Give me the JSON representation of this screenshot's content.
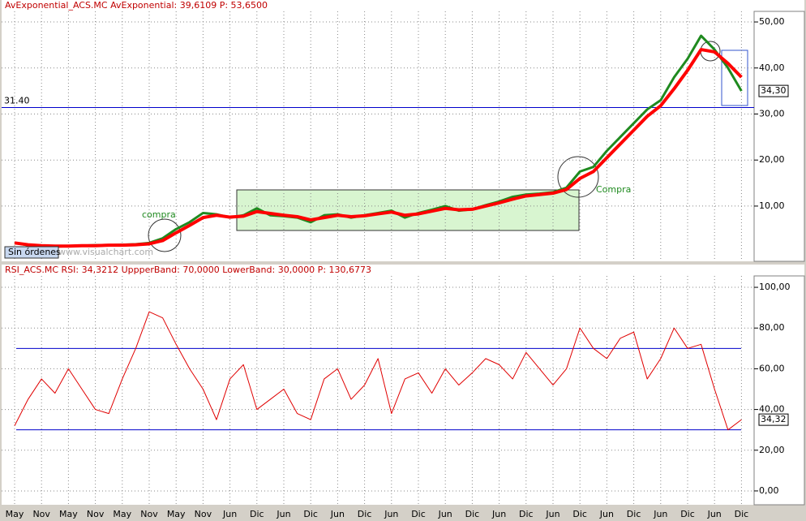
{
  "chart_data": [
    {
      "type": "line",
      "title": "AvExponential_ACS.MC  AvExponential: 39,6109  P: 53,6500",
      "series": [
        {
          "color": "#1f8a1f",
          "values": [
            2.0,
            1.5,
            1.3,
            1.2,
            1.3,
            1.4,
            1.5,
            1.5,
            1.6,
            1.7,
            2.0,
            3.0,
            5.0,
            6.5,
            8.5,
            8.2,
            7.5,
            8.0,
            9.5,
            8.0,
            7.8,
            7.5,
            6.5,
            8.0,
            8.2,
            7.5,
            8.0,
            8.5,
            9.0,
            7.5,
            8.5,
            9.2,
            10.0,
            9.0,
            9.3,
            10.2,
            11.0,
            12.0,
            12.5,
            12.7,
            13.0,
            14.0,
            17.5,
            18.5,
            22.0,
            25.0,
            28.0,
            31.0,
            33.0,
            38.0,
            42.0,
            47.0,
            44.0,
            40.0,
            35.0
          ]
        },
        {
          "color": "#ff0000",
          "values": [
            2.0,
            1.6,
            1.4,
            1.3,
            1.3,
            1.4,
            1.4,
            1.5,
            1.5,
            1.6,
            1.8,
            2.5,
            4.2,
            5.8,
            7.5,
            8.0,
            7.6,
            7.8,
            8.8,
            8.4,
            8.0,
            7.7,
            7.0,
            7.5,
            8.0,
            7.7,
            7.9,
            8.3,
            8.7,
            8.0,
            8.3,
            8.9,
            9.5,
            9.2,
            9.3,
            10.0,
            10.7,
            11.5,
            12.2,
            12.5,
            12.8,
            13.6,
            16.0,
            17.5,
            20.5,
            23.5,
            26.5,
            29.5,
            31.8,
            35.5,
            39.5,
            44.0,
            43.5,
            41.0,
            38.0
          ]
        }
      ],
      "ylim": [
        -2,
        52.3
      ],
      "yticks": [
        {
          "value": 10,
          "label": "10,00"
        },
        {
          "value": 20,
          "label": "20,00"
        },
        {
          "value": 30,
          "label": "30,00"
        },
        {
          "value": 40,
          "label": "40,00"
        },
        {
          "value": 50,
          "label": "50,00"
        }
      ],
      "hline": {
        "value": 31.4,
        "label": "31.40"
      },
      "last_label": "34,30",
      "annotations": [
        "compra",
        "Compra",
        "Sin órdenes",
        "www.visualchart.com"
      ],
      "grid": true
    },
    {
      "type": "line",
      "title": "RSI_ACS.MC  RSI: 34,3212  UppperBand: 70,0000  LowerBand: 30,0000  P: 130,6773",
      "categories": [
        "May",
        null,
        "Nov",
        null,
        "May",
        null,
        "Nov",
        null,
        "May",
        null,
        "Nov",
        null,
        "May",
        null,
        "Nov",
        null,
        "Jun",
        null,
        "Dic",
        null,
        "Jun",
        null,
        "Dic",
        null,
        "Jun",
        null,
        "Dic",
        null,
        "Jun",
        null,
        "Dic",
        null,
        "Jun",
        null,
        "Dic",
        null,
        "Jun",
        null,
        "Dic",
        null,
        "Jun",
        null,
        "Dic",
        null,
        "Jun",
        null,
        "Dic",
        null,
        "Jun",
        null,
        "Dic",
        null,
        "Jun",
        null,
        "Dic"
      ],
      "series": [
        {
          "color": "#e00000",
          "values": [
            32,
            45,
            55,
            48,
            60,
            50,
            40,
            38,
            55,
            70,
            88,
            85,
            72,
            60,
            50,
            35,
            55,
            62,
            40,
            45,
            50,
            38,
            35,
            55,
            60,
            45,
            52,
            65,
            38,
            55,
            58,
            48,
            60,
            52,
            58,
            65,
            62,
            55,
            68,
            60,
            52,
            60,
            80,
            70,
            65,
            75,
            78,
            55,
            65,
            80,
            70,
            72,
            50,
            30,
            35
          ]
        }
      ],
      "bands": [
        70,
        30
      ],
      "band_color": "#0000cc",
      "ylim": [
        -6.8,
        105.6
      ],
      "yticks": [
        {
          "value": 0,
          "label": "0,00"
        },
        {
          "value": 20,
          "label": "20,00"
        },
        {
          "value": 40,
          "label": "40,00"
        },
        {
          "value": 60,
          "label": "60,00"
        },
        {
          "value": 80,
          "label": "80,00"
        },
        {
          "value": 100,
          "label": "100,00"
        }
      ],
      "last_label": "34,32",
      "grid": true
    }
  ]
}
